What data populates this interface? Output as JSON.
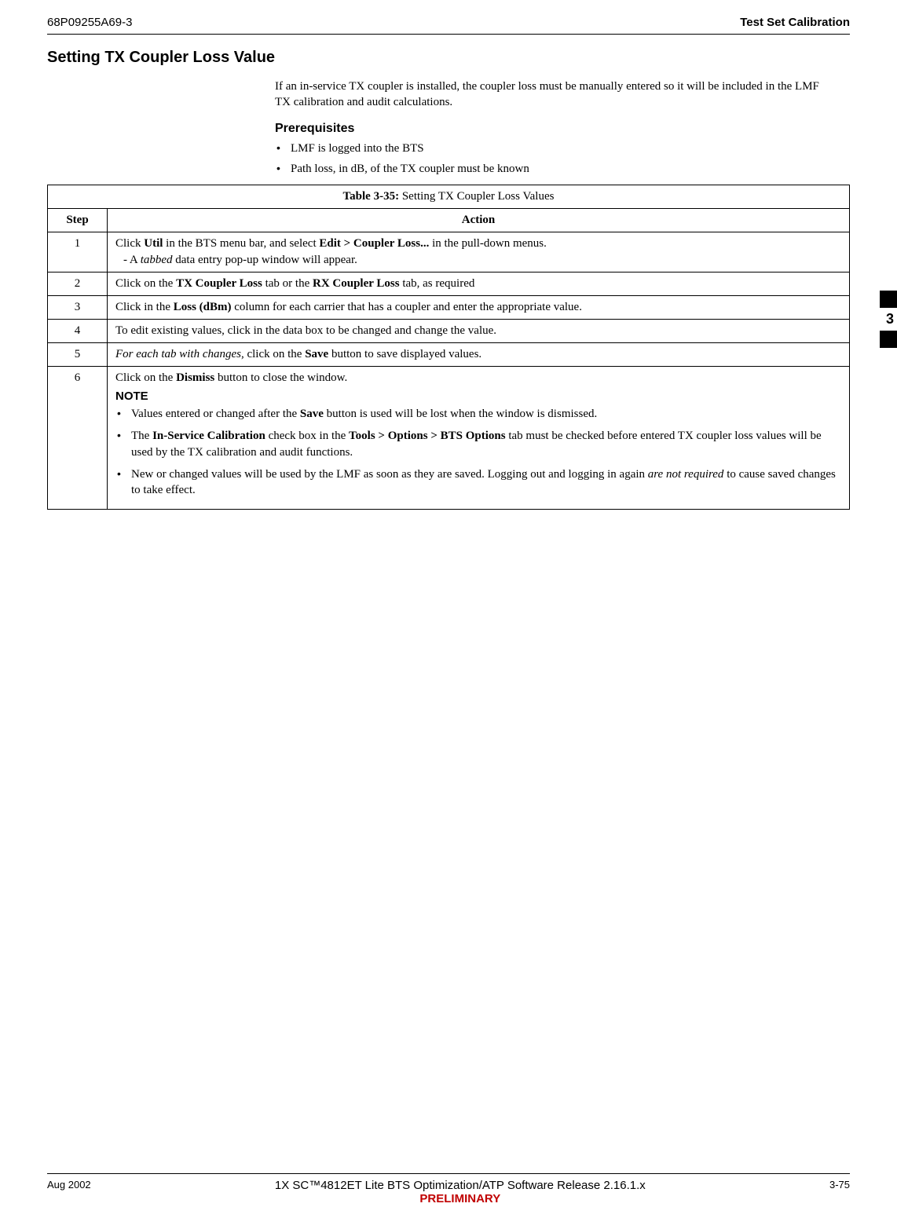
{
  "header": {
    "doc_number": "68P09255A69-3",
    "title": "Test Set Calibration"
  },
  "section": {
    "heading": "Setting TX Coupler Loss Value",
    "intro": "If an in-service TX coupler is installed, the coupler loss must be manually entered so it will be included in the LMF TX calibration and audit calculations.",
    "prereq_heading": "Prerequisites",
    "prereqs": [
      "LMF is logged into the BTS",
      "Path loss, in dB, of the TX coupler must be known"
    ]
  },
  "table": {
    "title_prefix": "Table 3-35:",
    "title_rest": " Setting TX Coupler Loss Values",
    "col_step": "Step",
    "col_action": "Action",
    "rows": {
      "r1": {
        "num": "1",
        "t1a": "Click ",
        "t1b": "Util",
        "t1c": " in the BTS menu bar, and select ",
        "t1d": "Edit > Coupler Loss...",
        "t1e": " in the pull-down menus.",
        "sub_dash": "-   A ",
        "sub_i": "tabbed",
        "sub_rest": " data entry pop-up window will appear."
      },
      "r2": {
        "num": "2",
        "a": "Click on the ",
        "b": "TX Coupler Loss",
        "c": " tab or the ",
        "d": "RX Coupler Loss",
        "e": " tab, as required"
      },
      "r3": {
        "num": "3",
        "a": "Click in the ",
        "b": "Loss (dBm)",
        "c": " column for each carrier that has a coupler and enter the appropriate value."
      },
      "r4": {
        "num": "4",
        "a": "To edit existing values, click in the data box to be changed and change the value."
      },
      "r5": {
        "num": "5",
        "a_i": "For each tab with changes",
        "b": ", click on the ",
        "c": "Save",
        "d": " button to save displayed values."
      },
      "r6": {
        "num": "6",
        "a": "Click on the ",
        "b": "Dismiss",
        "c": " button to close the window.",
        "note_label": "NOTE",
        "n1a": "Values entered or changed after the ",
        "n1b": "Save",
        "n1c": " button is used will be lost when the window is dismissed.",
        "n2a": "The ",
        "n2b": "In-Service  Calibration",
        "n2c": " check box in the ",
        "n2d": "Tools > Options > BTS Options",
        "n2e": " tab must be checked before entered TX coupler loss values will be used by the TX calibration and audit functions.",
        "n3a": "New or changed values will be used by the LMF as soon as they are saved. Logging out and logging in again ",
        "n3b": "are not required",
        "n3c": " to cause saved changes to take effect."
      }
    }
  },
  "side_tab": {
    "chapter": "3"
  },
  "footer": {
    "date": "Aug 2002",
    "center_main": "1X SC™4812ET Lite BTS Optimization/ATP Software Release 2.16.1.x",
    "preliminary": "PRELIMINARY",
    "page": "3-75"
  }
}
